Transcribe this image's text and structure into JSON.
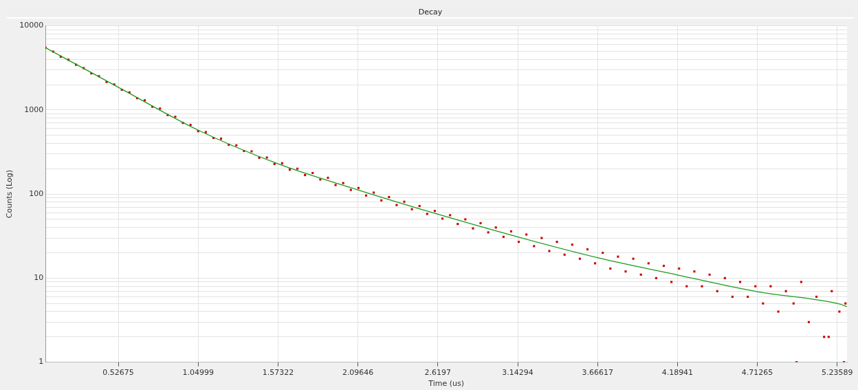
{
  "chart_data": {
    "type": "scatter",
    "title": "Decay",
    "xlabel": "Time (us)",
    "ylabel": "Counts (Log)",
    "log": "y",
    "grid": true,
    "legend": false,
    "xlim": [
      0.05,
      5.3
    ],
    "xticks": [
      0.52675,
      1.04999,
      1.57322,
      2.09646,
      2.6197,
      3.14294,
      3.66617,
      4.18941,
      4.71265,
      5.23589
    ],
    "ylim": [
      1,
      10000
    ],
    "yticks": [
      1,
      {
        "value": 2,
        "label": null
      },
      {
        "value": 3,
        "label": null
      },
      {
        "value": 4,
        "label": null
      },
      {
        "value": 5,
        "label": null
      },
      {
        "value": 6,
        "label": null
      },
      {
        "value": 7,
        "label": null
      },
      {
        "value": 8,
        "label": null
      },
      {
        "value": 9,
        "label": null
      },
      10,
      {
        "value": 20,
        "label": null
      },
      {
        "value": 30,
        "label": null
      },
      {
        "value": 40,
        "label": null
      },
      {
        "value": 50,
        "label": null
      },
      {
        "value": 60,
        "label": null
      },
      {
        "value": 70,
        "label": null
      },
      {
        "value": 80,
        "label": null
      },
      {
        "value": 90,
        "label": null
      },
      100,
      {
        "value": 200,
        "label": null
      },
      {
        "value": 300,
        "label": null
      },
      {
        "value": 400,
        "label": null
      },
      {
        "value": 500,
        "label": null
      },
      {
        "value": 600,
        "label": null
      },
      {
        "value": 700,
        "label": null
      },
      {
        "value": 800,
        "label": null
      },
      {
        "value": 900,
        "label": null
      },
      1000,
      {
        "value": 2000,
        "label": null
      },
      {
        "value": 3000,
        "label": null
      },
      {
        "value": 4000,
        "label": null
      },
      {
        "value": 5000,
        "label": null
      },
      {
        "value": 6000,
        "label": null
      },
      {
        "value": 7000,
        "label": null
      },
      {
        "value": 8000,
        "label": null
      },
      {
        "value": 9000,
        "label": null
      },
      10000
    ],
    "series": [
      {
        "color": "#cc0000",
        "marker": "square",
        "x": [
          0.05,
          0.1,
          0.15,
          0.2,
          0.25,
          0.3,
          0.35,
          0.4,
          0.45,
          0.5,
          0.55,
          0.6,
          0.65,
          0.7,
          0.75,
          0.8,
          0.85,
          0.9,
          0.95,
          1.0,
          1.05,
          1.1,
          1.15,
          1.2,
          1.25,
          1.3,
          1.35,
          1.4,
          1.45,
          1.5,
          1.55,
          1.6,
          1.65,
          1.7,
          1.75,
          1.8,
          1.85,
          1.9,
          1.95,
          2.0,
          2.05,
          2.1,
          2.15,
          2.2,
          2.25,
          2.3,
          2.35,
          2.4,
          2.45,
          2.5,
          2.55,
          2.6,
          2.65,
          2.7,
          2.75,
          2.8,
          2.85,
          2.9,
          2.95,
          3.0,
          3.05,
          3.1,
          3.15,
          3.2,
          3.25,
          3.3,
          3.35,
          3.4,
          3.45,
          3.5,
          3.55,
          3.6,
          3.65,
          3.7,
          3.75,
          3.8,
          3.85,
          3.9,
          3.95,
          4.0,
          4.05,
          4.1,
          4.15,
          4.2,
          4.25,
          4.3,
          4.35,
          4.4,
          4.45,
          4.5,
          4.55,
          4.6,
          4.65,
          4.7,
          4.75,
          4.8,
          4.85,
          4.9,
          4.95,
          5.0,
          5.05,
          5.1,
          5.15,
          5.2,
          5.25,
          5.29,
          4.97,
          5.18,
          5.28
        ],
        "values": [
          5500,
          4950,
          4300,
          3950,
          3450,
          3150,
          2720,
          2520,
          2150,
          2010,
          1740,
          1620,
          1380,
          1300,
          1090,
          1040,
          870,
          830,
          700,
          665,
          560,
          545,
          465,
          455,
          385,
          380,
          325,
          322,
          270,
          272,
          228,
          232,
          195,
          200,
          168,
          178,
          149,
          156,
          128,
          135,
          112,
          118,
          96,
          104,
          84,
          92,
          74,
          81,
          66,
          72,
          58,
          63,
          51,
          56,
          44,
          50,
          39,
          45,
          35,
          40,
          31,
          36,
          27,
          33,
          24,
          30,
          21,
          27,
          19,
          25,
          17,
          22,
          15,
          20,
          13,
          18,
          12,
          17,
          11,
          15,
          10,
          14,
          9,
          13,
          8,
          12,
          8,
          11,
          7,
          10,
          6,
          9,
          6,
          8,
          5,
          8,
          4,
          7,
          5,
          9,
          3,
          6,
          2,
          7,
          4,
          5,
          1,
          2,
          1
        ]
      },
      {
        "type": "line",
        "color": "#1a9a1a",
        "x": [
          0.05,
          0.527,
          1.05,
          1.573,
          2.096,
          2.62,
          3.143,
          3.666,
          4.19,
          4.713,
          5.236,
          5.3
        ],
        "values": [
          5500,
          1860,
          575,
          229,
          112,
          57.5,
          30.9,
          17.5,
          10.9,
          6.9,
          5.0,
          4.6
        ]
      }
    ]
  }
}
